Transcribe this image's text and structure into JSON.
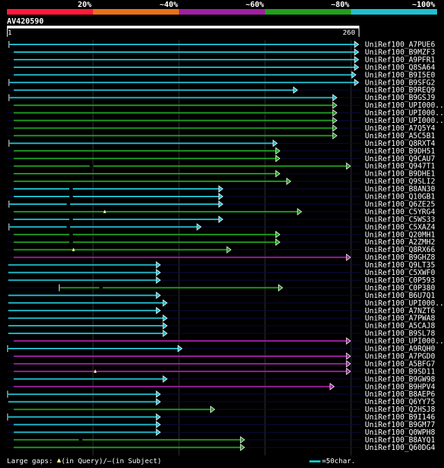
{
  "legend": [
    {
      "label": "20%",
      "color": "#ff1a3a"
    },
    {
      "label": "~40%",
      "color": "#e8701a"
    },
    {
      "label": "~60%",
      "color": "#a020a0"
    },
    {
      "label": "~80%",
      "color": "#20a020"
    },
    {
      "label": "~100%",
      "color": "#20c0d0"
    }
  ],
  "query": {
    "id": "AV420590",
    "start": "1",
    "end": "260"
  },
  "footer": {
    "gaps_prefix": "Large gaps:",
    "gaps_query": "(in Query)/",
    "gaps_subject_mark": "–",
    "gaps_subject": "(in Subject)",
    "scale": "=50char."
  },
  "chart_data": {
    "type": "alignment",
    "query_length": 260,
    "hits": [
      {
        "label": "UniRef100_A7PUE6",
        "start": 3,
        "end": 260,
        "identity": "~100%",
        "left_tick": true
      },
      {
        "label": "UniRef100_B9MZF3",
        "start": 6,
        "end": 260,
        "identity": "~100%"
      },
      {
        "label": "UniRef100_A9PFR1",
        "start": 6,
        "end": 260,
        "identity": "~100%"
      },
      {
        "label": "UniRef100_Q8SA64",
        "start": 6,
        "end": 260,
        "identity": "~100%"
      },
      {
        "label": "UniRef100_B9I5E0",
        "start": 6,
        "end": 258,
        "identity": "~100%"
      },
      {
        "label": "UniRef100_B9SFG2",
        "start": 3,
        "end": 260,
        "identity": "~100%",
        "left_tick": true
      },
      {
        "label": "UniRef100_B9REQ9",
        "start": 6,
        "end": 215,
        "identity": "~100%"
      },
      {
        "label": "UniRef100_B9GSJ9",
        "start": 3,
        "end": 244,
        "identity": "~100%",
        "left_tick": true
      },
      {
        "label": "UniRef100_UPI000..",
        "start": 6,
        "end": 244,
        "identity": "~80%"
      },
      {
        "label": "UniRef100_UPI000..",
        "start": 6,
        "end": 244,
        "identity": "~80%"
      },
      {
        "label": "UniRef100_UPI000..",
        "start": 6,
        "end": 244,
        "identity": "~80%"
      },
      {
        "label": "UniRef100_A7Q5Y4",
        "start": 6,
        "end": 244,
        "identity": "~80%"
      },
      {
        "label": "UniRef100_A5C5B1",
        "start": 6,
        "end": 244,
        "identity": "~80%"
      },
      {
        "label": "UniRef100_Q8RXT4",
        "start": 3,
        "end": 200,
        "identity": "~100%",
        "left_tick": true
      },
      {
        "label": "UniRef100_B9DH51",
        "start": 6,
        "end": 202,
        "identity": "~80%"
      },
      {
        "label": "UniRef100_Q9CAU7",
        "start": 6,
        "end": 202,
        "identity": "~80%"
      },
      {
        "label": "UniRef100_Q947T1",
        "start": 6,
        "end": 254,
        "identity": "~80%",
        "gap_subject_at": 63
      },
      {
        "label": "UniRef100_B9DHE1",
        "start": 6,
        "end": 202,
        "identity": "~80%"
      },
      {
        "label": "UniRef100_Q9SLI2",
        "start": 6,
        "end": 210,
        "identity": "~80%"
      },
      {
        "label": "UniRef100_B8AN30",
        "start": 6,
        "end": 160,
        "identity": "~100%",
        "gap_subject_at": 48
      },
      {
        "label": "UniRef100_Q10GB1",
        "start": 6,
        "end": 160,
        "identity": "~100%",
        "gap_subject_at": 48
      },
      {
        "label": "UniRef100_Q6ZE25",
        "start": 3,
        "end": 160,
        "identity": "~100%",
        "left_tick": true,
        "gap_subject_at": 46
      },
      {
        "label": "UniRef100_C5YRG4",
        "start": 6,
        "end": 218,
        "identity": "~80%",
        "gap_query_at": 73
      },
      {
        "label": "UniRef100_C5WS33",
        "start": 6,
        "end": 160,
        "identity": "~100%",
        "gap_subject_at": 48
      },
      {
        "label": "UniRef100_C5XAZ4",
        "start": 3,
        "end": 144,
        "identity": "~100%",
        "left_tick": true,
        "gap_subject_at": 46
      },
      {
        "label": "UniRef100_Q20MH1",
        "start": 6,
        "end": 202,
        "identity": "~80%",
        "gap_subject_at": 48
      },
      {
        "label": "UniRef100_A2ZMH2",
        "start": 6,
        "end": 202,
        "identity": "~80%",
        "gap_subject_at": 48
      },
      {
        "label": "UniRef100_Q8RX66",
        "start": 6,
        "end": 166,
        "identity": "~80%",
        "gap_query_at": 50
      },
      {
        "label": "UniRef100_B9GHZ8",
        "start": 6,
        "end": 254,
        "identity": "~60%"
      },
      {
        "label": "UniRef100_Q9LT35",
        "start": 2,
        "end": 114,
        "identity": "~100%"
      },
      {
        "label": "UniRef100_C5XWF0",
        "start": 2,
        "end": 114,
        "identity": "~100%"
      },
      {
        "label": "UniRef100_C0P593",
        "start": 2,
        "end": 114,
        "identity": "~100%"
      },
      {
        "label": "UniRef100_C0P380",
        "start": 40,
        "end": 204,
        "identity": "~80%",
        "left_tick": true,
        "gap_subject_at": 70
      },
      {
        "label": "UniRef100_B6U7Q1",
        "start": 2,
        "end": 114,
        "identity": "~100%"
      },
      {
        "label": "UniRef100_UPI000..",
        "start": 2,
        "end": 119,
        "identity": "~100%"
      },
      {
        "label": "UniRef100_A7NZT6",
        "start": 2,
        "end": 114,
        "identity": "~100%"
      },
      {
        "label": "UniRef100_A7PWA8",
        "start": 2,
        "end": 119,
        "identity": "~100%"
      },
      {
        "label": "UniRef100_A5CAJ8",
        "start": 2,
        "end": 119,
        "identity": "~100%"
      },
      {
        "label": "UniRef100_B9SL78",
        "start": 2,
        "end": 119,
        "identity": "~100%"
      },
      {
        "label": "UniRef100_UPI000..",
        "start": 6,
        "end": 254,
        "identity": "~60%"
      },
      {
        "label": "UniRef100_A9RQH0",
        "start": 2,
        "end": 130,
        "identity": "~100%",
        "left_tick": true
      },
      {
        "label": "UniRef100_A7PGD0",
        "start": 6,
        "end": 254,
        "identity": "~60%"
      },
      {
        "label": "UniRef100_A5BFG7",
        "start": 6,
        "end": 254,
        "identity": "~60%"
      },
      {
        "label": "UniRef100_B9SD11",
        "start": 6,
        "end": 254,
        "identity": "~60%",
        "gap_query_at": 66
      },
      {
        "label": "UniRef100_B9GW98",
        "start": 6,
        "end": 119,
        "identity": "~100%"
      },
      {
        "label": "UniRef100_B9HPV4",
        "start": 6,
        "end": 242,
        "identity": "~60%"
      },
      {
        "label": "UniRef100_B8AEP6",
        "start": 2,
        "end": 114,
        "identity": "~100%",
        "left_tick": true
      },
      {
        "label": "UniRef100_Q6YY75",
        "start": 2,
        "end": 114,
        "identity": "~100%"
      },
      {
        "label": "UniRef100_Q2HSJ8",
        "start": 6,
        "end": 154,
        "identity": "~80%"
      },
      {
        "label": "UniRef100_B9I146",
        "start": 2,
        "end": 114,
        "identity": "~100%",
        "left_tick": true
      },
      {
        "label": "UniRef100_B9GM77",
        "start": 6,
        "end": 114,
        "identity": "~100%"
      },
      {
        "label": "UniRef100_Q0WPH8",
        "start": 6,
        "end": 114,
        "identity": "~100%"
      },
      {
        "label": "UniRef100_B8AYQ1",
        "start": 6,
        "end": 176,
        "identity": "~80%",
        "gap_subject_at": 55
      },
      {
        "label": "UniRef100_Q60DG4",
        "start": 6,
        "end": 176,
        "identity": "~80%"
      }
    ]
  }
}
